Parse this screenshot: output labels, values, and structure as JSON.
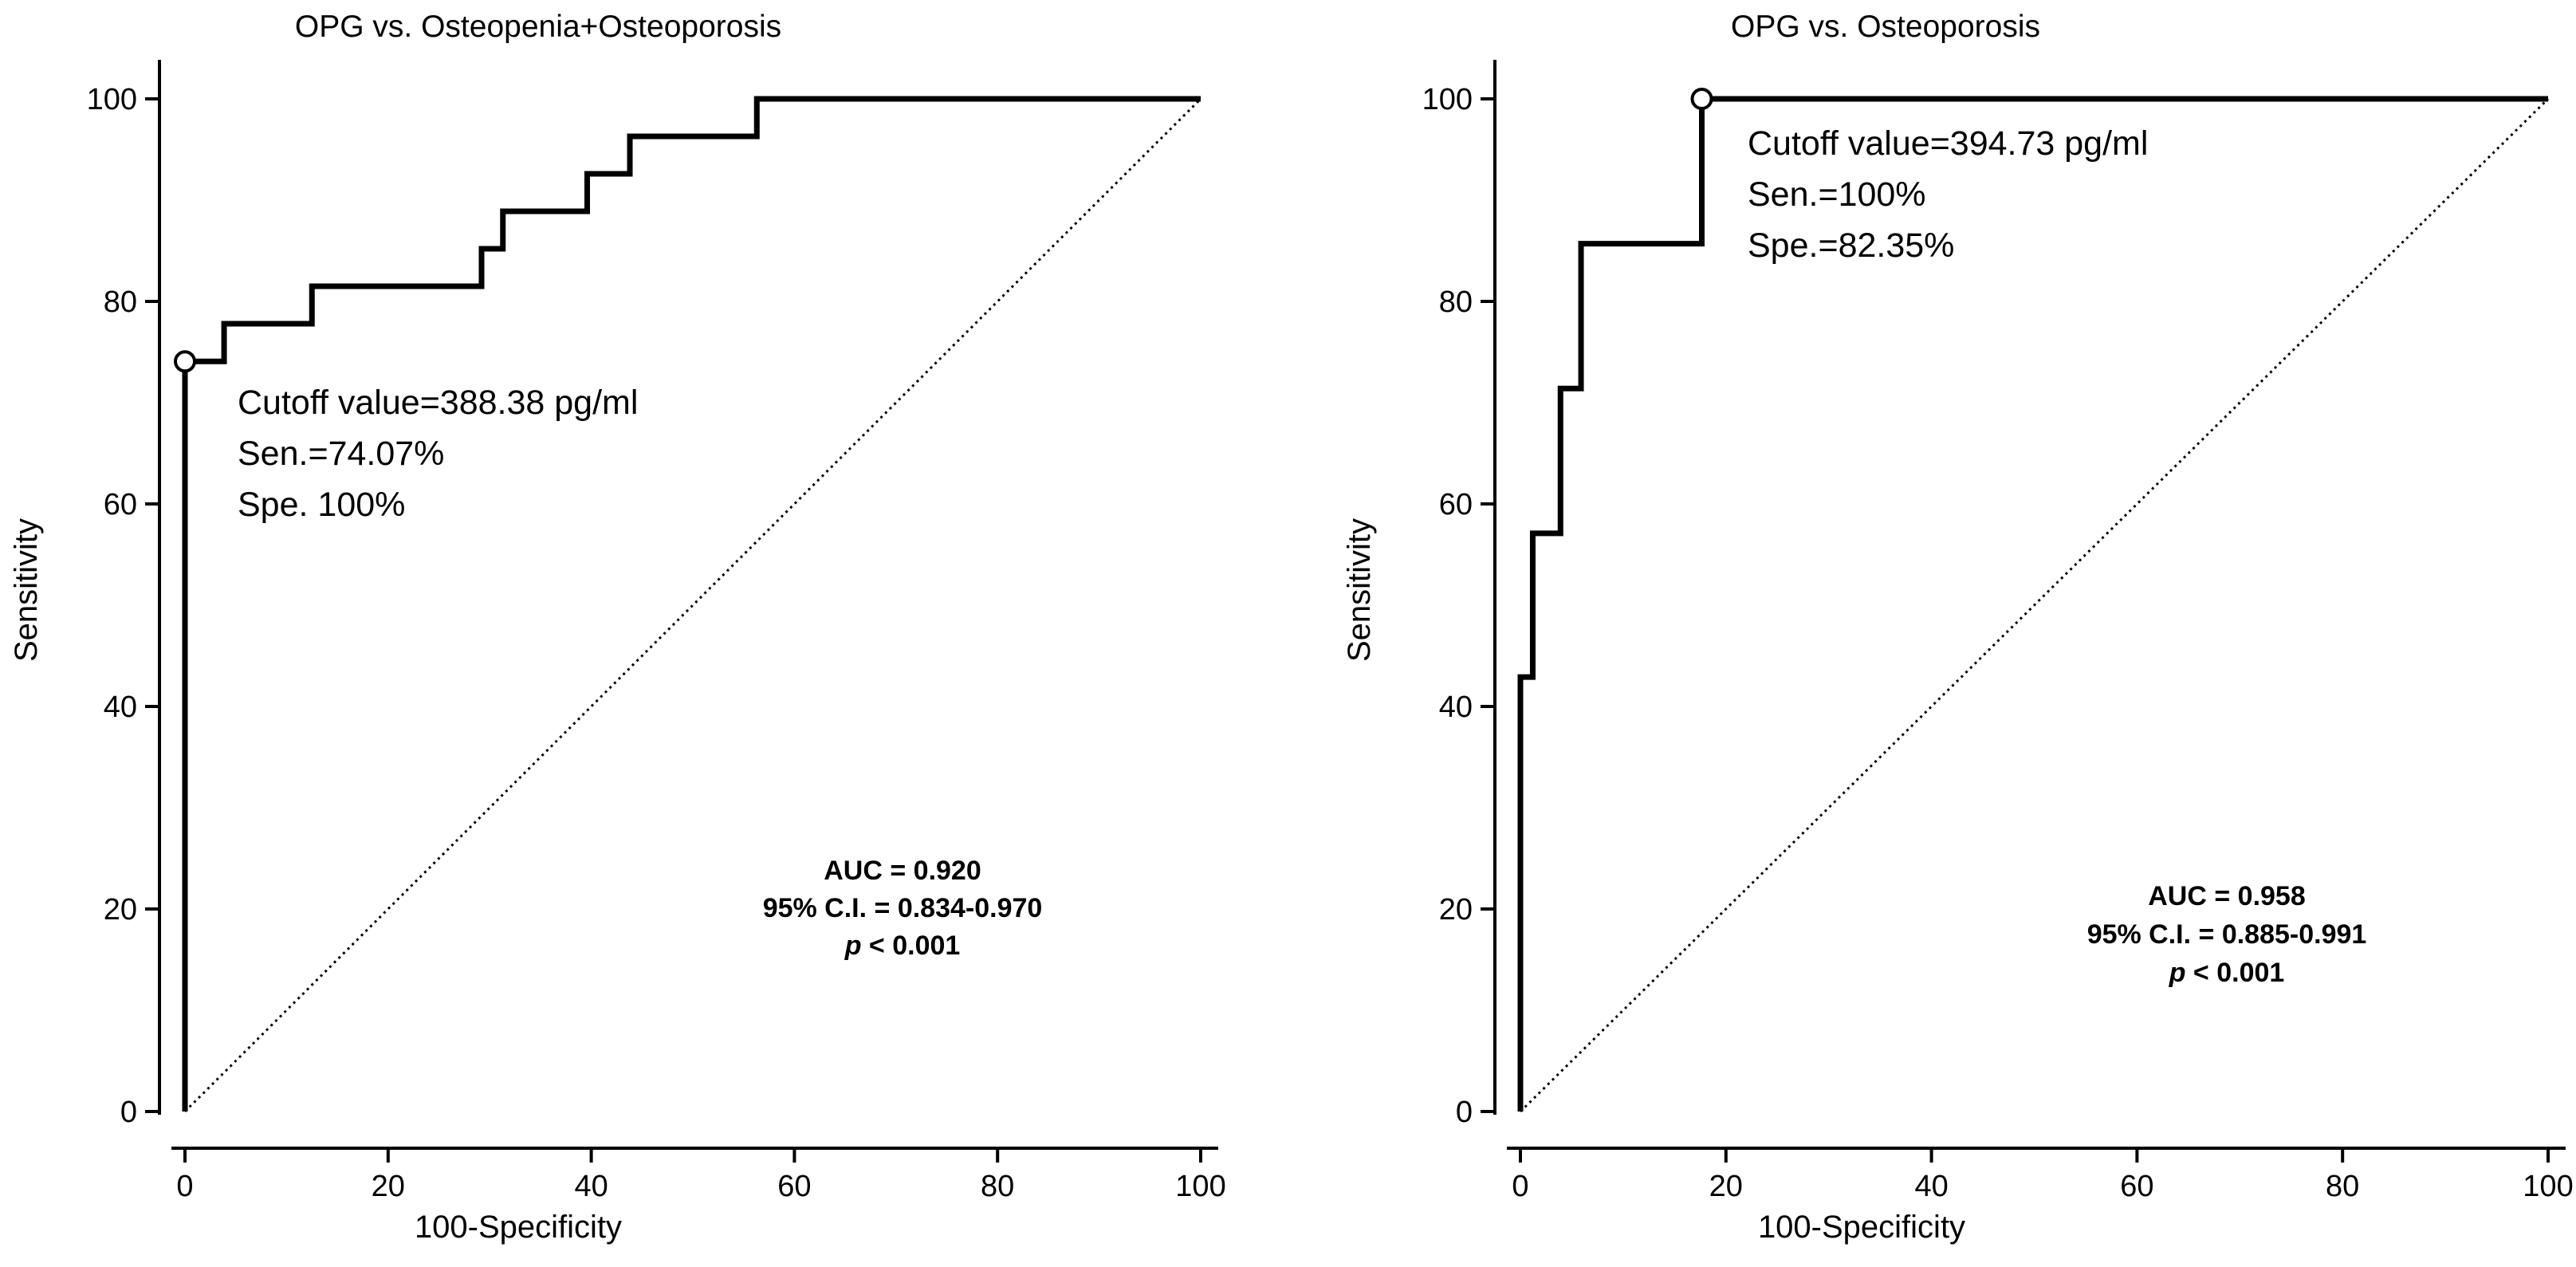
{
  "chart_data": [
    {
      "type": "line",
      "subtype": "roc",
      "title": "OPG vs. Osteopenia+Osteoporosis",
      "xlabel": "100-Specificity",
      "ylabel": "Sensitivity",
      "xlim": [
        0,
        100
      ],
      "ylim": [
        0,
        100
      ],
      "xticks": [
        0,
        20,
        40,
        60,
        80,
        100
      ],
      "yticks": [
        0,
        20,
        40,
        60,
        80,
        100
      ],
      "grid": false,
      "series": [
        {
          "name": "ROC curve",
          "x": [
            0,
            0,
            3.85,
            3.85,
            12.5,
            12.5,
            29.2,
            29.2,
            31.3,
            31.3,
            39.6,
            39.6,
            43.8,
            43.8,
            56.3,
            56.3,
            100
          ],
          "y": [
            0,
            74.07,
            74.07,
            77.8,
            77.8,
            81.5,
            81.5,
            85.2,
            85.2,
            88.9,
            88.9,
            92.6,
            92.6,
            96.3,
            96.3,
            100,
            100
          ]
        },
        {
          "name": "Reference line",
          "x": [
            0,
            100
          ],
          "y": [
            0,
            100
          ]
        }
      ],
      "cutoff_point": {
        "x": 0,
        "y": 74.07
      },
      "annotation_lines": [
        "Cutoff value=388.38 pg/ml",
        "Sen.=74.07%",
        "Spe. 100%"
      ],
      "stats": {
        "auc": "AUC = 0.920",
        "ci": "95% C.I. = 0.834-0.970",
        "p_symbol": "p",
        "p_rest": " < 0.001"
      }
    },
    {
      "type": "line",
      "subtype": "roc",
      "title": "OPG vs. Osteoporosis",
      "xlabel": "100-Specificity",
      "ylabel": "Sensitivity",
      "xlim": [
        0,
        100
      ],
      "ylim": [
        0,
        100
      ],
      "xticks": [
        0,
        20,
        40,
        60,
        80,
        100
      ],
      "yticks": [
        0,
        20,
        40,
        60,
        80,
        100
      ],
      "grid": false,
      "series": [
        {
          "name": "ROC curve",
          "x": [
            0,
            0,
            1.2,
            1.2,
            3.9,
            3.9,
            5.9,
            5.9,
            17.65,
            17.65,
            100
          ],
          "y": [
            0,
            42.9,
            42.9,
            57.1,
            57.1,
            71.4,
            71.4,
            85.7,
            85.7,
            100,
            100
          ]
        },
        {
          "name": "Reference line",
          "x": [
            0,
            100
          ],
          "y": [
            0,
            100
          ]
        }
      ],
      "cutoff_point": {
        "x": 17.65,
        "y": 100
      },
      "annotation_lines": [
        "Cutoff value=394.73 pg/ml",
        "Sen.=100%",
        "Spe.=82.35%"
      ],
      "stats": {
        "auc": "AUC = 0.958",
        "ci": "95% C.I. = 0.885-0.991",
        "p_symbol": "p",
        "p_rest": " < 0.001"
      }
    }
  ]
}
